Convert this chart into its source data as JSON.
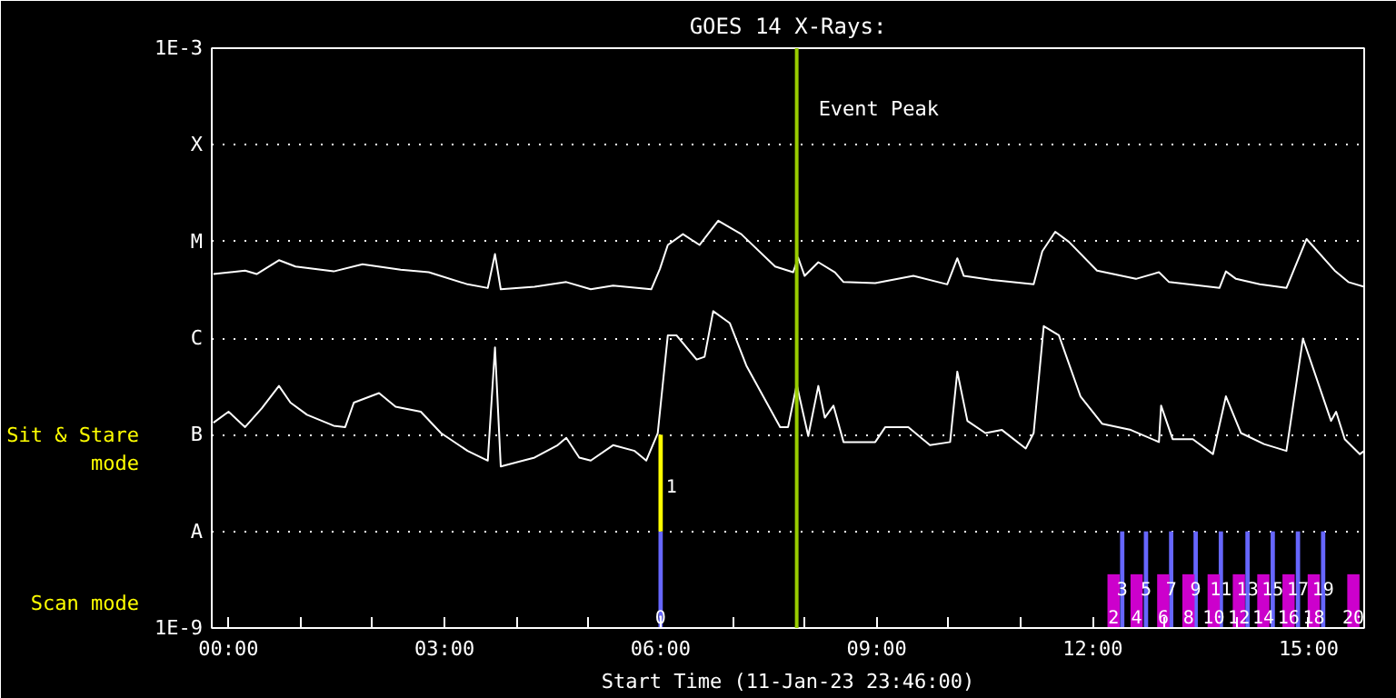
{
  "chart_data": {
    "type": "line",
    "title": "GOES 14 X-Rays:",
    "xlabel": "Start Time (11-Jan-23 23:46:00)",
    "log": "y",
    "grid": "y",
    "line_style": "solid",
    "marker": "none",
    "xlim": [
      -0.233,
      15.77
    ],
    "ylim": [
      1e-09,
      0.001
    ],
    "xticks": [
      {
        "value": 0,
        "label": "00:00"
      },
      {
        "value": 1,
        "label": null
      },
      {
        "value": 2,
        "label": null
      },
      {
        "value": 3,
        "label": "03:00"
      },
      {
        "value": 4,
        "label": null
      },
      {
        "value": 5,
        "label": null
      },
      {
        "value": 6,
        "label": "06:00"
      },
      {
        "value": 7,
        "label": null
      },
      {
        "value": 8,
        "label": null
      },
      {
        "value": 9,
        "label": "09:00"
      },
      {
        "value": 10,
        "label": null
      },
      {
        "value": 11,
        "label": null
      },
      {
        "value": 12,
        "label": "12:00"
      },
      {
        "value": 13,
        "label": null
      },
      {
        "value": 14,
        "label": null
      },
      {
        "value": 15,
        "label": "15:00"
      }
    ],
    "yticks": [
      {
        "value": 1e-09,
        "label": "1E-9"
      },
      {
        "value": 1e-08,
        "label": "A"
      },
      {
        "value": 1e-07,
        "label": "B"
      },
      {
        "value": 1e-06,
        "label": "C"
      },
      {
        "value": 1e-05,
        "label": "M"
      },
      {
        "value": 0.0001,
        "label": "X"
      },
      {
        "value": 0.001,
        "label": "1E-3"
      }
    ],
    "ref_lines": [
      {
        "axis": "x",
        "value": 7.89,
        "label": "Event Peak",
        "color": "#99cc00"
      }
    ],
    "annotations": [
      "Sit & Stare mode",
      "Scan mode",
      "0",
      "1",
      "2",
      "3",
      "4",
      "5",
      "6",
      "7",
      "8",
      "9",
      "10",
      "11",
      "12",
      "13",
      "14",
      "15",
      "16",
      "17",
      "18",
      "19",
      "20"
    ],
    "series": [
      {
        "color": "#ffffff",
        "x": [
          -0.21,
          0.23,
          0.39,
          0.7,
          0.93,
          1.46,
          1.86,
          2.39,
          2.78,
          3.32,
          3.6,
          3.7,
          3.78,
          4.25,
          4.69,
          5.03,
          5.34,
          5.87,
          5.99,
          6.1,
          6.31,
          6.54,
          6.8,
          7.12,
          7.59,
          7.84,
          7.91,
          8.0,
          8.19,
          8.42,
          8.54,
          8.98,
          9.51,
          9.98,
          10.12,
          10.21,
          10.6,
          11.18,
          11.3,
          11.48,
          11.67,
          12.06,
          12.6,
          12.92,
          13.06,
          13.76,
          13.85,
          13.99,
          14.32,
          14.69,
          14.97,
          15.36,
          15.55,
          15.77
        ],
        "values": [
          4.6e-06,
          5e-06,
          4.6e-06,
          6.4e-06,
          5.5e-06,
          4.9e-06,
          5.8e-06,
          5.1e-06,
          4.8e-06,
          3.6e-06,
          3.3e-06,
          7.4e-06,
          3.2e-06,
          3.4e-06,
          3.8e-06,
          3.2e-06,
          3.5e-06,
          3.2e-06,
          5.2e-06,
          9.2e-06,
          1.19e-05,
          9.2e-06,
          1.64e-05,
          1.19e-05,
          5.5e-06,
          4.8e-06,
          6.8e-06,
          4.4e-06,
          6.1e-06,
          4.8e-06,
          3.8e-06,
          3.7e-06,
          4.4e-06,
          3.6e-06,
          6.7e-06,
          4.4e-06,
          4e-06,
          3.6e-06,
          7.9e-06,
          1.26e-05,
          9.9e-06,
          5e-06,
          4.1e-06,
          4.8e-06,
          3.8e-06,
          3.3e-06,
          4.9e-06,
          4.1e-06,
          3.6e-06,
          3.3e-06,
          1.06e-05,
          5e-06,
          3.8e-06,
          3.4e-06
        ]
      },
      {
        "color": "#ffffff",
        "x": [
          -0.21,
          0.0,
          0.23,
          0.46,
          0.7,
          0.86,
          1.09,
          1.46,
          1.62,
          1.74,
          2.09,
          2.32,
          2.67,
          2.95,
          3.32,
          3.6,
          3.7,
          3.78,
          4.25,
          4.57,
          4.69,
          4.87,
          5.03,
          5.34,
          5.64,
          5.8,
          5.96,
          6.1,
          6.22,
          6.5,
          6.61,
          6.73,
          6.96,
          7.19,
          7.66,
          7.77,
          7.89,
          8.05,
          8.19,
          8.28,
          8.4,
          8.54,
          8.98,
          9.12,
          9.44,
          9.74,
          10.02,
          10.12,
          10.26,
          10.51,
          10.74,
          11.07,
          11.18,
          11.32,
          11.53,
          11.83,
          12.13,
          12.53,
          12.92,
          12.95,
          13.11,
          13.39,
          13.67,
          13.85,
          14.06,
          14.38,
          14.69,
          14.92,
          15.31,
          15.38,
          15.5,
          15.71,
          15.77
        ],
        "values": [
          1.33e-07,
          1.73e-07,
          1.2e-07,
          1.87e-07,
          3.2e-07,
          2.15e-07,
          1.61e-07,
          1.24e-07,
          1.2e-07,
          2.15e-07,
          2.7e-07,
          1.95e-07,
          1.73e-07,
          1.04e-07,
          6.8e-08,
          5.4e-08,
          8e-07,
          4.7e-08,
          5.8e-08,
          7.8e-08,
          9.3e-08,
          5.8e-08,
          5.4e-08,
          7.8e-08,
          6.8e-08,
          5.4e-08,
          1.04e-07,
          1.07e-06,
          1.07e-06,
          6e-07,
          6.4e-07,
          1.9e-06,
          1.43e-06,
          5.2e-07,
          1.2e-07,
          1.2e-07,
          3.3e-07,
          9.7e-08,
          3.2e-07,
          1.5e-07,
          2e-07,
          8.4e-08,
          8.4e-08,
          1.2e-07,
          1.2e-07,
          7.8e-08,
          8.4e-08,
          4.5e-07,
          1.39e-07,
          1.04e-07,
          1.12e-07,
          7.2e-08,
          1.04e-07,
          1.33e-06,
          1.07e-06,
          2.5e-07,
          1.3e-07,
          1.12e-07,
          8.4e-08,
          2e-07,
          9e-08,
          9e-08,
          6.3e-08,
          2.5e-07,
          1.04e-07,
          8e-08,
          6.8e-08,
          9.9e-07,
          1.39e-07,
          1.73e-07,
          9e-08,
          6.3e-08,
          6.8e-08
        ]
      },
      {
        "type": "bar",
        "color": "#6666ff",
        "x": [
          6.0,
          12.41,
          12.74,
          13.09,
          13.43,
          13.78,
          14.15,
          14.5,
          14.85,
          15.2
        ],
        "values": [
          1e-08,
          1e-08,
          1e-08,
          1e-08,
          1e-08,
          1e-08,
          1e-08,
          1e-08,
          1e-08,
          1e-08
        ]
      },
      {
        "type": "bar",
        "color": "#ffff00",
        "x": [
          6.0
        ],
        "base": [
          1e-08
        ],
        "values": [
          9e-08
        ]
      },
      {
        "type": "bar",
        "color": "#cc00cc",
        "x": [
          12.29,
          12.61,
          12.98,
          13.33,
          13.68,
          14.03,
          14.37,
          14.72,
          15.07,
          15.62
        ],
        "values": [
          3.6e-09,
          3.6e-09,
          3.6e-09,
          3.6e-09,
          3.6e-09,
          3.6e-09,
          3.6e-09,
          3.6e-09,
          3.6e-09,
          3.6e-09
        ]
      }
    ]
  }
}
